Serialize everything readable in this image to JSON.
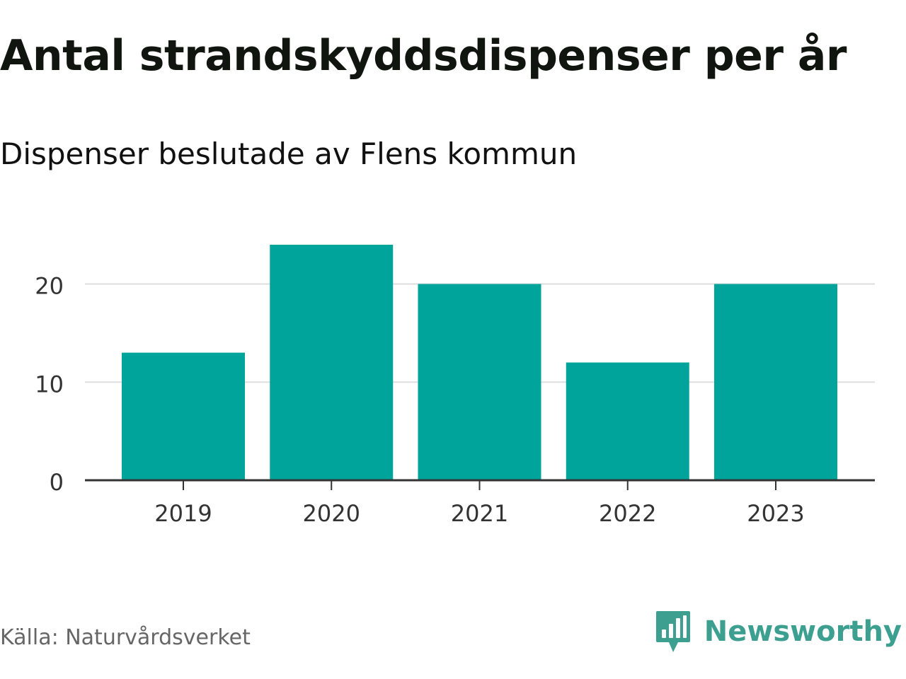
{
  "title": "Antal strandskyddsdispenser per år",
  "subtitle": "Dispenser beslutade av Flens kommun",
  "source": "Källa: Naturvårdsverket",
  "brand": {
    "name": "Newsworthy",
    "icon": "newsworthy-logo-icon",
    "color": "#3c9f8f"
  },
  "colors": {
    "bar": "#00a49a",
    "grid": "#dddddd",
    "axis": "#333333"
  },
  "chart_data": {
    "type": "bar",
    "title": "Antal strandskyddsdispenser per år",
    "subtitle": "Dispenser beslutade av Flens kommun",
    "categories": [
      "2019",
      "2020",
      "2021",
      "2022",
      "2023"
    ],
    "values": [
      13,
      24,
      20,
      12,
      20
    ],
    "xlabel": "",
    "ylabel": "",
    "ylim": [
      0,
      24
    ],
    "yticks": [
      0,
      10,
      20
    ],
    "grid": true,
    "legend": "none"
  }
}
